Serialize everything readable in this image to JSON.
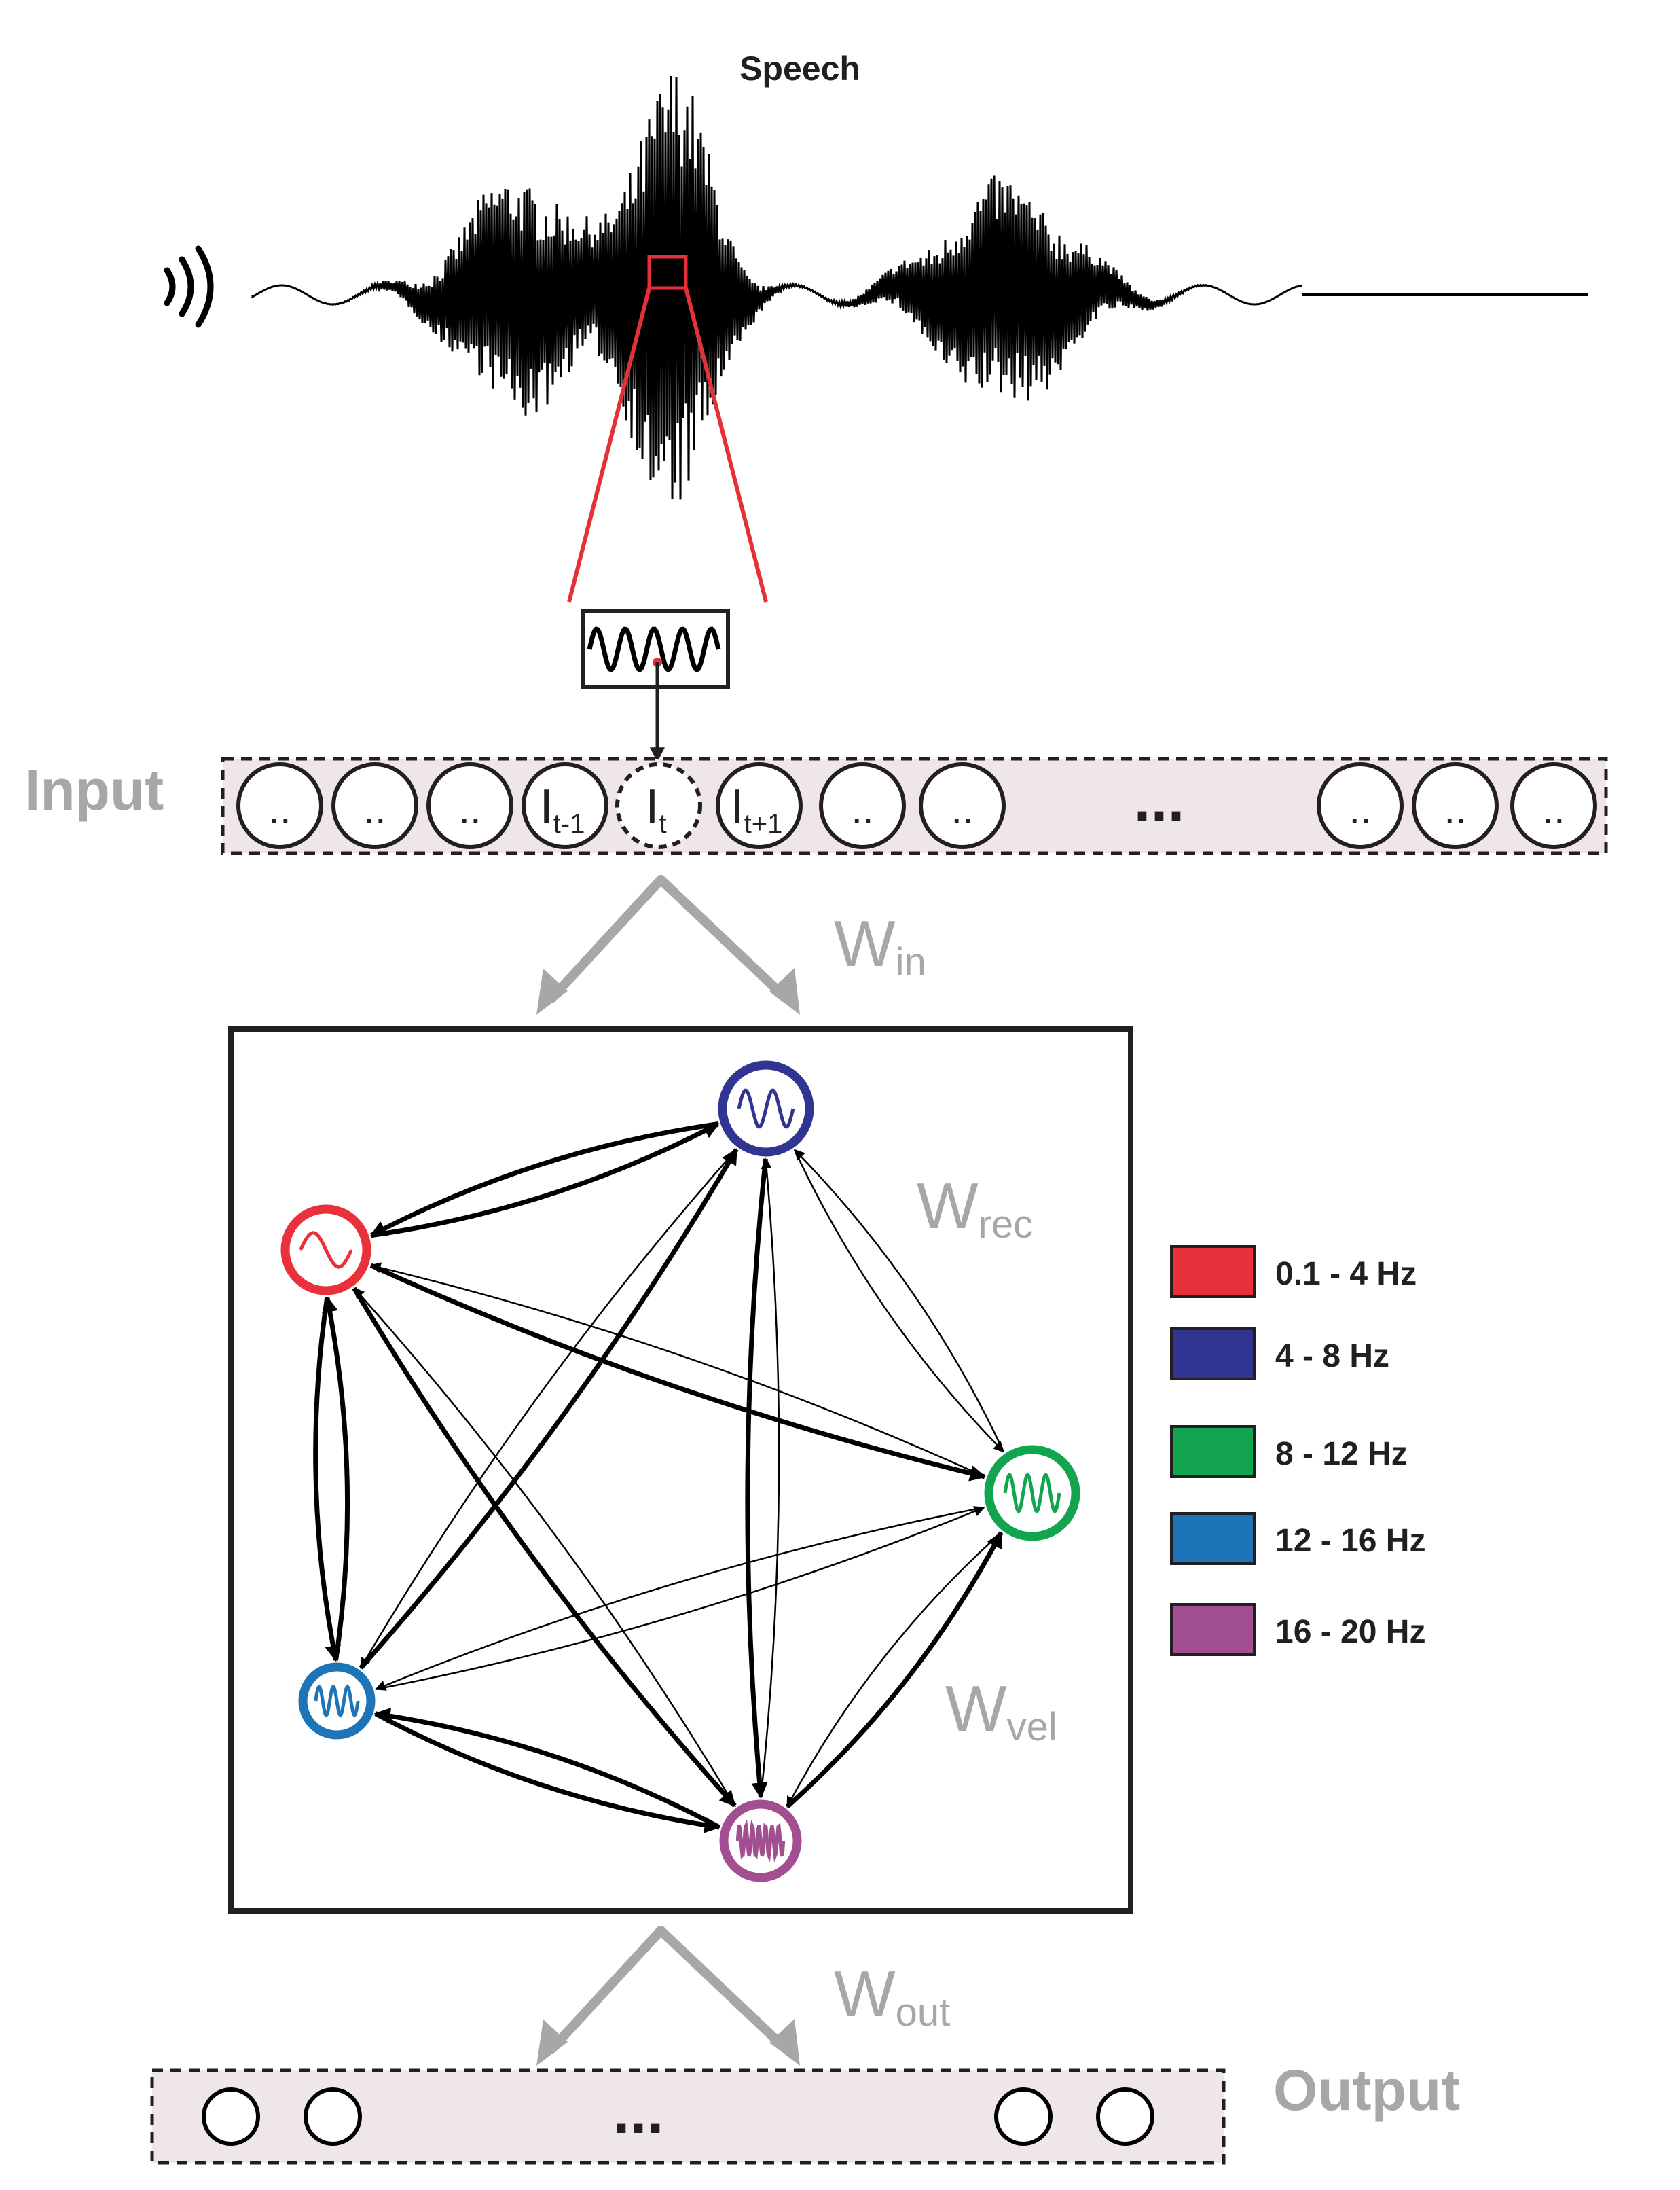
{
  "title": "Speech",
  "layers": {
    "input": {
      "label": "Input",
      "units": [
        "..",
        "..",
        "..",
        "I_t-1",
        "I_t",
        "I_t+1",
        "..",
        "..",
        "..",
        "..",
        ".."
      ],
      "ellipsis": "..."
    },
    "output": {
      "label": "Output",
      "ellipsis": "..."
    }
  },
  "weights": {
    "input": {
      "main": "W",
      "sub": "in"
    },
    "recurrent": {
      "main": "W",
      "sub": "rec"
    },
    "velocity": {
      "main": "W",
      "sub": "vel"
    },
    "output": {
      "main": "W",
      "sub": "out"
    }
  },
  "input_units": {
    "prev": {
      "main": "I",
      "sub": "t-1"
    },
    "curr": {
      "main": "I",
      "sub": "t"
    },
    "next": {
      "main": "I",
      "sub": "t+1"
    },
    "dots": ".."
  },
  "legend": [
    {
      "label": "0.1 - 4 Hz",
      "color": "#e8313a"
    },
    {
      "label": "4 - 8 Hz",
      "color": "#303591"
    },
    {
      "label": "8 - 12 Hz",
      "color": "#12a44f"
    },
    {
      "label": "12 - 16 Hz",
      "color": "#1d75b8"
    },
    {
      "label": "16 - 20 Hz",
      "color": "#a14f90"
    }
  ],
  "oscillators": [
    {
      "id": "delta",
      "color": "#e8313a",
      "cycles": 1
    },
    {
      "id": "theta",
      "color": "#303591",
      "cycles": 2
    },
    {
      "id": "alpha",
      "color": "#12a44f",
      "cycles": 3
    },
    {
      "id": "beta-low",
      "color": "#1d75b8",
      "cycles": 3
    },
    {
      "id": "beta-high",
      "color": "#a14f90",
      "cycles": 7
    }
  ],
  "colors": {
    "highlight": "#e5303a",
    "grey": "#a7a7a7",
    "layer_fill": "#efe6e9",
    "ink": "#000000"
  },
  "icons": {
    "sound": "sound-wave-icon"
  }
}
